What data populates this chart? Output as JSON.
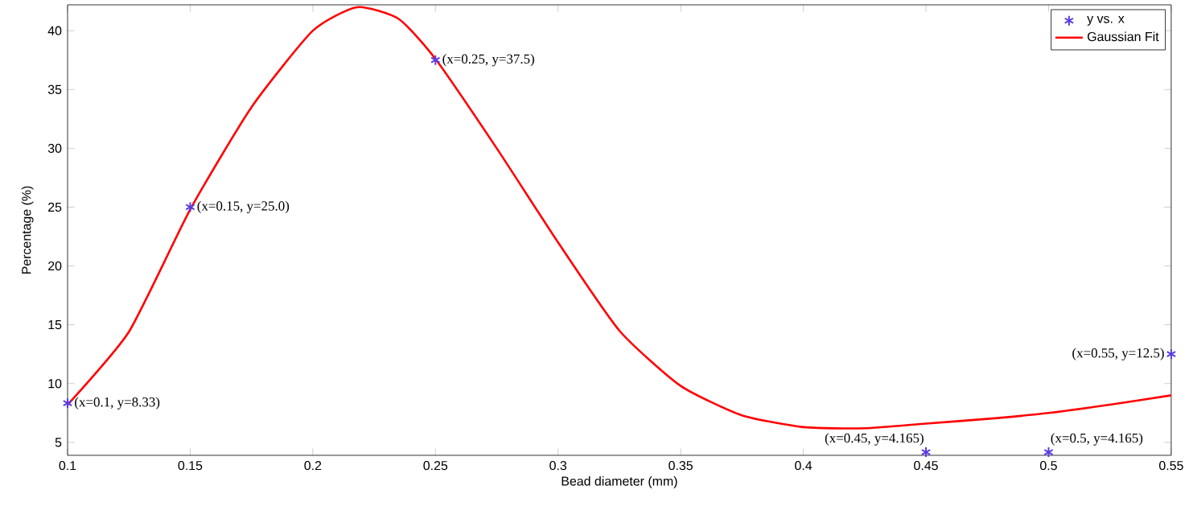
{
  "chart_data": {
    "type": "scatter",
    "xlabel": "Bead diameter (mm)",
    "ylabel": "Percentage (%)",
    "xlim": [
      0.1,
      0.55
    ],
    "ylim": [
      3.9,
      42.2
    ],
    "xticks": [
      0.1,
      0.15,
      0.2,
      0.25,
      0.3,
      0.35,
      0.4,
      0.45,
      0.5,
      0.55
    ],
    "yticks": [
      5,
      10,
      15,
      20,
      25,
      30,
      35,
      40
    ],
    "legend": "top right",
    "grid": false,
    "series": [
      {
        "name": "y vs. x",
        "marker": "cross",
        "color": "#5a3ce0",
        "x": [
          0.1,
          0.15,
          0.25,
          0.45,
          0.5,
          0.55
        ],
        "values": [
          8.33,
          25.0,
          37.5,
          4.165,
          4.165,
          12.5
        ]
      },
      {
        "name": "Gaussian Fit",
        "type": "line",
        "color": "#ff0000",
        "x": [
          0.1,
          0.125,
          0.15,
          0.175,
          0.2,
          0.218,
          0.235,
          0.25,
          0.275,
          0.3,
          0.325,
          0.35,
          0.375,
          0.4,
          0.425,
          0.45,
          0.475,
          0.5,
          0.525,
          0.55
        ],
        "values": [
          8.2,
          14.4,
          24.8,
          33.5,
          40.0,
          42.0,
          41.0,
          37.6,
          30.0,
          22.0,
          14.5,
          9.8,
          7.3,
          6.3,
          6.2,
          6.6,
          7.0,
          7.5,
          8.2,
          9.0
        ]
      }
    ],
    "annotations": [
      {
        "text": "(x=0.1, y=8.33)",
        "x": 0.1,
        "y": 8.33
      },
      {
        "text": "(x=0.15, y=25.0)",
        "x": 0.15,
        "y": 25.0
      },
      {
        "text": "(x=0.25, y=37.5)",
        "x": 0.25,
        "y": 37.5
      },
      {
        "text": "(x=0.45, y=4.165)",
        "x": 0.45,
        "y": 4.165
      },
      {
        "text": "(x=0.5, y=4.165)",
        "x": 0.5,
        "y": 4.165
      },
      {
        "text": "(x=0.55, y=12.5)",
        "x": 0.55,
        "y": 12.5
      }
    ]
  }
}
